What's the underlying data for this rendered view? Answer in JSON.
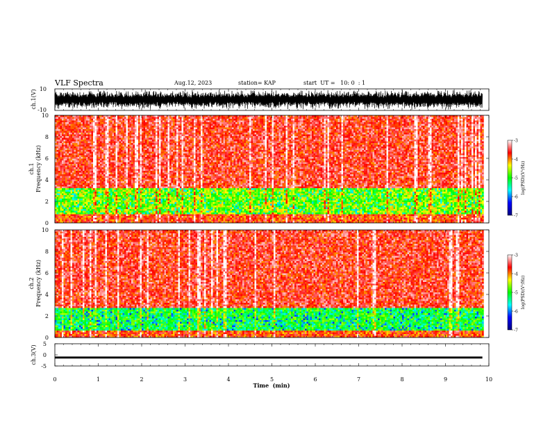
{
  "header": {
    "title": "VLF Spectra",
    "date": "Aug.12, 2023",
    "station": "station= KAP",
    "start_ut": "start  UT =   10: 0  : 1"
  },
  "chart_data": [
    {
      "type": "line",
      "panel": "waveform-ch1",
      "ylabel": "ch.1(V)",
      "ylim": [
        -10,
        10
      ],
      "y_ticks": [
        "10",
        "-10"
      ],
      "xlim": [
        0,
        10
      ],
      "note_style": "dense black oscillation filling most of the range"
    },
    {
      "type": "heatmap",
      "panel": "spectrogram-ch1",
      "ylabel": "ch.1\nFrequency  (kHz)",
      "ylim": [
        0,
        10
      ],
      "y_ticks": [
        "0",
        "2",
        "4",
        "6",
        "8",
        "10"
      ],
      "xlim": [
        0,
        9.85
      ],
      "colorbar": {
        "label": "log(PSD)(V²/Hz)",
        "range": [
          -7,
          -3
        ],
        "ticks": [
          "-3",
          "-4",
          "-5",
          "-6",
          "-7"
        ],
        "colors": [
          "#00007f",
          "#0000ff",
          "#00ffff",
          "#00ff00",
          "#ffff00",
          "#ff0000",
          "#ffffff"
        ]
      },
      "bands": [
        {
          "from_khz": 0.0,
          "to_khz": 0.8,
          "level": -3.8
        },
        {
          "from_khz": 0.8,
          "to_khz": 3.2,
          "level": -4.6
        },
        {
          "from_khz": 3.2,
          "to_khz": 10.0,
          "level": -3.6
        }
      ]
    },
    {
      "type": "heatmap",
      "panel": "spectrogram-ch2",
      "ylabel": "ch.2\nFrequency  (kHz)",
      "ylim": [
        0,
        10
      ],
      "y_ticks": [
        "0",
        "2",
        "4",
        "6",
        "8",
        "10"
      ],
      "xlim": [
        0,
        9.85
      ],
      "colorbar": {
        "label": "log(PSD)(V²/Hz)",
        "range": [
          -7,
          -3
        ],
        "ticks": [
          "-3",
          "-4",
          "-5",
          "-6",
          "-7"
        ],
        "colors": [
          "#00007f",
          "#0000ff",
          "#00ffff",
          "#00ff00",
          "#ffff00",
          "#ff0000",
          "#ffffff"
        ]
      },
      "bands": [
        {
          "from_khz": 0.0,
          "to_khz": 0.7,
          "level": -3.8
        },
        {
          "from_khz": 0.7,
          "to_khz": 2.8,
          "level": -5.0
        },
        {
          "from_khz": 2.8,
          "to_khz": 10.0,
          "level": -3.6
        }
      ]
    },
    {
      "type": "line",
      "panel": "waveform-ch3",
      "ylabel": "ch.3(V)",
      "ylim": [
        -5,
        5
      ],
      "y_ticks": [
        "5",
        "0",
        "-5"
      ],
      "xlim": [
        0,
        10
      ],
      "trace_center": -1.2,
      "trace_half_width": 0.45
    }
  ],
  "x_axis": {
    "label": "Time  (min)",
    "ticks": [
      "0",
      "1",
      "2",
      "3",
      "4",
      "5",
      "6",
      "7",
      "8",
      "9",
      "10"
    ]
  }
}
